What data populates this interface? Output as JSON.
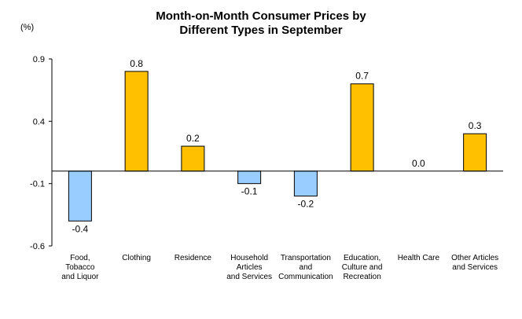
{
  "chart_data": {
    "type": "bar",
    "title_line1": "Month-on-Month Consumer Prices by",
    "title_line2": "Different Types in September",
    "ylabel": "(%)",
    "ylim": [
      -0.6,
      0.9
    ],
    "yticks": [
      "0.9",
      "0.4",
      "-0.1",
      "-0.6"
    ],
    "ytick_values": [
      0.9,
      0.4,
      -0.1,
      -0.6
    ],
    "grid": false,
    "categories": [
      [
        "Food,",
        "Tobacco",
        "and Liquor"
      ],
      [
        "Clothing"
      ],
      [
        "Residence"
      ],
      [
        "Household",
        "Articles",
        "and Services"
      ],
      [
        "Transportation",
        "and",
        "Communication"
      ],
      [
        "Education,",
        "Culture and",
        "Recreation"
      ],
      [
        "Health Care"
      ],
      [
        "Other Articles",
        "and Services"
      ]
    ],
    "values": [
      -0.4,
      0.8,
      0.2,
      -0.1,
      -0.2,
      0.7,
      0.0,
      0.3
    ],
    "value_labels": [
      "-0.4",
      "0.8",
      "0.2",
      "-0.1",
      "-0.2",
      "0.7",
      "0.0",
      "0.3"
    ],
    "colors": {
      "positive": "#FFC000",
      "negative": "#99CCFF",
      "bar_stroke": "#000000"
    }
  }
}
